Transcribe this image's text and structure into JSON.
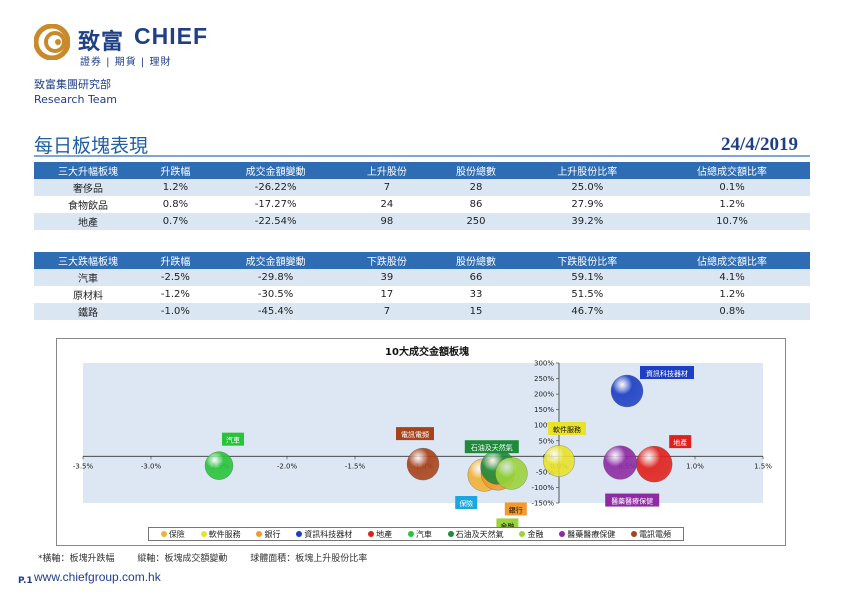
{
  "brand": {
    "name_cn": "致富",
    "name_en": "CHIEF",
    "tagline": "證券 | 期貨 | 理財",
    "dept_cn": "致富集團研究部",
    "dept_en": "Research Team",
    "colors": {
      "primary": "#1f3f87",
      "accent": "#c98a2b",
      "header": "#2e6cb3",
      "band": "#dbe6f3"
    }
  },
  "report": {
    "title": "每日板塊表現",
    "date": "24/4/2019"
  },
  "gainers": {
    "headers": [
      "三大升幅板塊",
      "升跌幅",
      "成交金額變動",
      "上升股份",
      "股份總數",
      "上升股份比率",
      "佔總成交額比率"
    ],
    "rows": [
      [
        "奢侈品",
        "1.2%",
        "-26.22%",
        "7",
        "28",
        "25.0%",
        "0.1%"
      ],
      [
        "食物飲品",
        "0.8%",
        "-17.27%",
        "24",
        "86",
        "27.9%",
        "1.2%"
      ],
      [
        "地產",
        "0.7%",
        "-22.54%",
        "98",
        "250",
        "39.2%",
        "10.7%"
      ]
    ]
  },
  "losers": {
    "headers": [
      "三大跌幅板塊",
      "升跌幅",
      "成交金額變動",
      "下跌股份",
      "股份總數",
      "下跌股份比率",
      "佔總成交額比率"
    ],
    "rows": [
      [
        "汽車",
        "-2.5%",
        "-29.8%",
        "39",
        "66",
        "59.1%",
        "4.1%"
      ],
      [
        "原材料",
        "-1.2%",
        "-30.5%",
        "17",
        "33",
        "51.5%",
        "1.2%"
      ],
      [
        "鐵路",
        "-1.0%",
        "-45.4%",
        "7",
        "15",
        "46.7%",
        "0.8%"
      ]
    ]
  },
  "chart_data": {
    "type": "scatter",
    "title": "10大成交金額板塊",
    "xlabel": "",
    "ylabel": "",
    "xlim": [
      -3.5,
      1.5
    ],
    "ylim": [
      -150,
      300
    ],
    "x_ticks": [
      "-3.5%",
      "-3.0%",
      "-2.5%",
      "-2.0%",
      "-1.5%",
      "-1.0%",
      "-0.5%",
      "0.0%",
      "0.5%",
      "1.0%",
      "1.5%"
    ],
    "x_tick_values": [
      -3.5,
      -3.0,
      -2.5,
      -2.0,
      -1.5,
      -1.0,
      -0.5,
      0.0,
      0.5,
      1.0,
      1.5
    ],
    "y_ticks": [
      "300%",
      "250%",
      "200%",
      "150%",
      "100%",
      "50%",
      "0%",
      "-50%",
      "-100%",
      "-150%"
    ],
    "y_tick_values": [
      300,
      250,
      200,
      150,
      100,
      50,
      0,
      -50,
      -100,
      -150
    ],
    "grid": false,
    "legend": "bottom",
    "series": [
      {
        "name": "保險",
        "x": -0.55,
        "y": -60,
        "size": 0.8,
        "color": "#f2b134",
        "label_color": "#1aa7e0"
      },
      {
        "name": "軟件服務",
        "x": 0.0,
        "y": -15,
        "size": 0.7,
        "color": "#e8e22a",
        "label_color": "#e8e22a"
      },
      {
        "name": "銀行",
        "x": -0.45,
        "y": -55,
        "size": 0.85,
        "color": "#f29a2e",
        "label_color": "#f29a2e"
      },
      {
        "name": "資訊科技器材",
        "x": 0.5,
        "y": 210,
        "size": 0.75,
        "color": "#1d3fc4",
        "label_color": "#1d3fc4"
      },
      {
        "name": "地產",
        "x": 0.7,
        "y": -25,
        "size": 1.0,
        "color": "#e0201b",
        "label_color": "#e0201b"
      },
      {
        "name": "汽車",
        "x": -2.5,
        "y": -30,
        "size": 0.5,
        "color": "#27c43a",
        "label_color": "#27c43a"
      },
      {
        "name": "石油及天然氣",
        "x": -0.45,
        "y": -35,
        "size": 0.9,
        "color": "#1f8a3a",
        "label_color": "#1f8a3a"
      },
      {
        "name": "金融",
        "x": -0.35,
        "y": -55,
        "size": 0.75,
        "color": "#9bd33a",
        "label_color": "#9bd33a"
      },
      {
        "name": "醫藥醫療保健",
        "x": 0.45,
        "y": -20,
        "size": 0.85,
        "color": "#8e2aa3",
        "label_color": "#8e2aa3"
      },
      {
        "name": "電訊電頻",
        "x": -1.0,
        "y": -25,
        "size": 0.75,
        "color": "#a8421a",
        "label_color": "#a8421a"
      }
    ]
  },
  "footnote": {
    "x_desc": "*橫軸：板塊升跌幅",
    "y_desc": "縱軸：板塊成交額變動",
    "size_desc": "球體面積：板塊上升股份比率"
  },
  "footer": {
    "page": "P.1",
    "website": "www.chiefgroup.com.hk"
  }
}
